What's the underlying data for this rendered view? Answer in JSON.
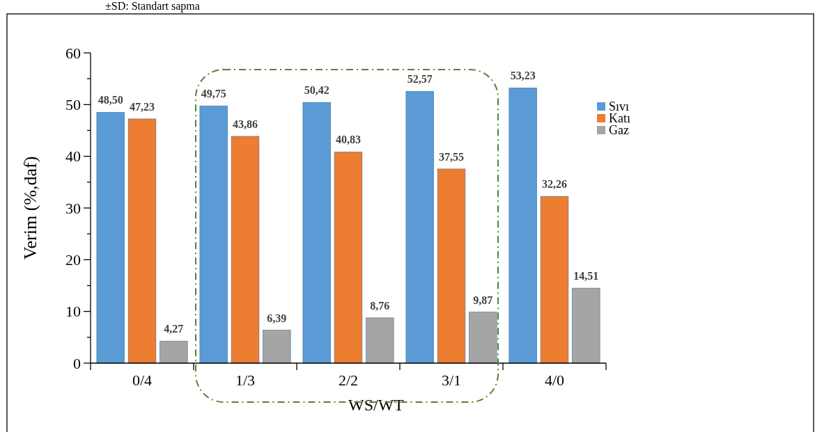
{
  "chart_data": {
    "type": "bar",
    "ylabel": "Verim (%,daf)",
    "xlabel": "WS/WT",
    "annotations": [
      "±SD: Standart sapma"
    ],
    "categories": [
      "0/4",
      "1/3",
      "2/2",
      "3/1",
      "4/0"
    ],
    "series": [
      {
        "name": "Sıvı",
        "color": "#5b9bd5",
        "values": [
          48.5,
          49.75,
          50.42,
          52.57,
          53.23
        ]
      },
      {
        "name": "Katı",
        "color": "#ed7d31",
        "values": [
          47.23,
          43.86,
          40.83,
          37.55,
          32.26
        ]
      },
      {
        "name": "Gaz",
        "color": "#a5a5a5",
        "values": [
          4.27,
          6.39,
          8.76,
          9.87,
          14.51
        ]
      }
    ],
    "value_labels": [
      [
        "48,50",
        "49,75",
        "50,42",
        "52,57",
        "53,23"
      ],
      [
        "47,23",
        "43,86",
        "40,83",
        "37,55",
        "32,26"
      ],
      [
        "4,27",
        "6,39",
        "8,76",
        "9,87",
        "14,51"
      ]
    ],
    "ylim": [
      0,
      60
    ],
    "yticks": [
      0,
      {
        "value": 5,
        "label": null
      },
      10,
      {
        "value": 15,
        "label": null
      },
      20,
      {
        "value": 25,
        "label": null
      },
      30,
      {
        "value": 35,
        "label": null
      },
      40,
      {
        "value": 45,
        "label": null
      },
      50,
      {
        "value": 55,
        "label": null
      },
      60
    ],
    "grid": false,
    "legend": "top right"
  }
}
